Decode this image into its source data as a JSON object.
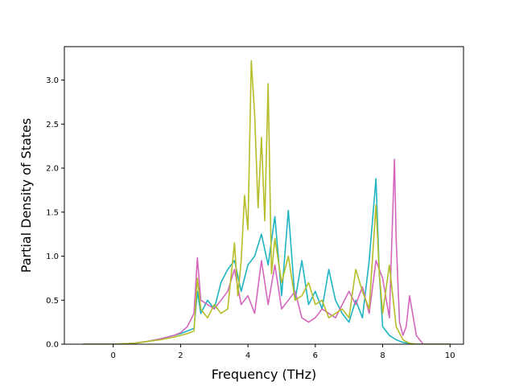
{
  "chart_data": {
    "type": "line",
    "title": "",
    "xlabel": "Frequency (THz)",
    "ylabel": "Partial Density of States",
    "xlim": [
      -1.45,
      10.4
    ],
    "ylim": [
      0.0,
      3.38
    ],
    "xticks": [
      0,
      2,
      4,
      6,
      8,
      10
    ],
    "xtick_labels": [
      "0",
      "2",
      "4",
      "6",
      "8",
      "10"
    ],
    "yticks": [
      0.0,
      0.5,
      1.0,
      1.5,
      2.0,
      2.5,
      3.0
    ],
    "ytick_labels": [
      "0.0",
      "0.5",
      "1.0",
      "1.5",
      "2.0",
      "2.5",
      "3.0"
    ],
    "grid": false,
    "legend": "none",
    "series": [
      {
        "color": "#1fb4c2",
        "x": [
          -0.9,
          0.0,
          0.6,
          1.0,
          1.4,
          1.8,
          2.0,
          2.2,
          2.4,
          2.5,
          2.6,
          2.8,
          3.0,
          3.2,
          3.4,
          3.6,
          3.8,
          4.0,
          4.2,
          4.4,
          4.6,
          4.8,
          5.0,
          5.2,
          5.4,
          5.6,
          5.8,
          6.0,
          6.2,
          6.4,
          6.6,
          6.8,
          7.0,
          7.2,
          7.4,
          7.6,
          7.8,
          7.9,
          8.0,
          8.2,
          8.4,
          8.6,
          8.8,
          9.0,
          9.2,
          9.6,
          10.0
        ],
        "y": [
          0.0,
          0.0,
          0.01,
          0.03,
          0.06,
          0.1,
          0.12,
          0.15,
          0.18,
          0.6,
          0.35,
          0.5,
          0.4,
          0.7,
          0.85,
          0.95,
          0.6,
          0.9,
          1.0,
          1.25,
          0.9,
          1.45,
          0.55,
          1.52,
          0.5,
          0.95,
          0.45,
          0.6,
          0.4,
          0.85,
          0.5,
          0.35,
          0.25,
          0.5,
          0.3,
          0.95,
          1.88,
          0.8,
          0.2,
          0.1,
          0.05,
          0.02,
          0.01,
          0.0,
          0.0,
          0.0,
          0.0
        ]
      },
      {
        "color": "#d467bd",
        "x": [
          -0.9,
          0.0,
          0.6,
          1.0,
          1.4,
          1.8,
          2.0,
          2.2,
          2.4,
          2.5,
          2.6,
          2.8,
          3.0,
          3.2,
          3.4,
          3.6,
          3.8,
          4.0,
          4.2,
          4.4,
          4.6,
          4.8,
          5.0,
          5.2,
          5.4,
          5.6,
          5.8,
          6.0,
          6.2,
          6.4,
          6.6,
          6.8,
          7.0,
          7.2,
          7.4,
          7.6,
          7.8,
          8.0,
          8.2,
          8.35,
          8.4,
          8.5,
          8.6,
          8.7,
          8.8,
          9.0,
          9.2,
          10.0
        ],
        "y": [
          0.0,
          0.0,
          0.01,
          0.03,
          0.06,
          0.1,
          0.13,
          0.2,
          0.35,
          0.98,
          0.5,
          0.45,
          0.4,
          0.5,
          0.6,
          0.85,
          0.45,
          0.55,
          0.35,
          0.95,
          0.45,
          0.9,
          0.4,
          0.5,
          0.6,
          0.3,
          0.25,
          0.3,
          0.4,
          0.35,
          0.3,
          0.45,
          0.6,
          0.45,
          0.65,
          0.35,
          0.95,
          0.75,
          0.3,
          2.1,
          1.2,
          0.25,
          0.1,
          0.2,
          0.55,
          0.1,
          0.0,
          0.0
        ]
      },
      {
        "color": "#b5bd29",
        "x": [
          -0.9,
          0.0,
          0.6,
          1.0,
          1.4,
          1.8,
          2.0,
          2.2,
          2.4,
          2.5,
          2.6,
          2.8,
          3.0,
          3.2,
          3.4,
          3.6,
          3.7,
          3.8,
          3.9,
          4.0,
          4.1,
          4.2,
          4.3,
          4.4,
          4.5,
          4.6,
          4.7,
          4.8,
          5.0,
          5.2,
          5.4,
          5.6,
          5.8,
          6.0,
          6.2,
          6.4,
          6.6,
          6.8,
          7.0,
          7.2,
          7.4,
          7.6,
          7.8,
          7.9,
          8.0,
          8.2,
          8.4,
          8.6,
          8.8,
          9.0,
          10.0
        ],
        "y": [
          0.0,
          0.0,
          0.01,
          0.03,
          0.05,
          0.08,
          0.1,
          0.12,
          0.15,
          0.75,
          0.4,
          0.3,
          0.45,
          0.35,
          0.4,
          1.15,
          0.55,
          0.95,
          1.69,
          1.3,
          3.22,
          2.6,
          1.55,
          2.35,
          1.4,
          2.96,
          0.8,
          1.2,
          0.7,
          1.0,
          0.5,
          0.55,
          0.7,
          0.45,
          0.5,
          0.3,
          0.35,
          0.4,
          0.3,
          0.85,
          0.6,
          0.4,
          1.58,
          0.8,
          0.35,
          0.9,
          0.2,
          0.05,
          0.01,
          0.0,
          0.0
        ]
      }
    ]
  }
}
